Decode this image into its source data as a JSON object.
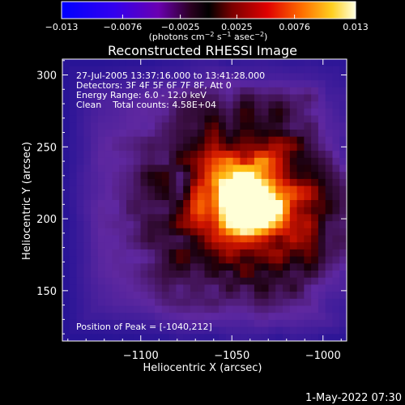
{
  "colorbar": {
    "ticks": [
      "-0.013",
      "-0.0076",
      "-0.0025",
      "0.0025",
      "0.0076",
      "0.013"
    ],
    "values": [
      -0.013,
      -0.0076,
      -0.0025,
      0.0025,
      0.0076,
      0.013
    ],
    "colors": [
      "#0000ff",
      "#5a00c8",
      "#2a002a",
      "#b80000",
      "#ff7700",
      "#ffffd0"
    ],
    "unit_prefix": "(photons cm",
    "unit_exp1": "−2",
    "unit_mid": " s",
    "unit_exp2": "−1",
    "unit_mid2": " asec",
    "unit_exp3": "−2",
    "unit_suffix": ")"
  },
  "chart_data": {
    "type": "heatmap",
    "title": "Reconstructed RHESSI Image",
    "xlabel": "Heliocentric X (arcsec)",
    "ylabel": "Heliocentric Y (arcsec)",
    "xlim": [
      -1143,
      -987
    ],
    "ylim": [
      115,
      311
    ],
    "xticks": [
      -1100,
      -1050,
      -1000
    ],
    "xtick_labels": [
      "−1100",
      "−1050",
      "−1000"
    ],
    "yticks": [
      150,
      200,
      250,
      300
    ],
    "ytick_labels": [
      "150",
      "200",
      "250",
      "300"
    ],
    "value_range": [
      -0.013,
      0.013
    ],
    "peak": {
      "x": -1040,
      "y": 212
    },
    "annotations": [
      "27-Jul-2005 13:37:16.000 to 13:41:28.000",
      "Detectors: 3F 4F 5F 6F 7F 8F, Att 0",
      "Energy Range: 6.0 - 12.0 keV",
      "Clean    Total counts: 4.58E+04"
    ],
    "peak_label": "Position of Peak = [-1040,212]"
  },
  "footer": {
    "date": "1-May-2022 07:30"
  }
}
